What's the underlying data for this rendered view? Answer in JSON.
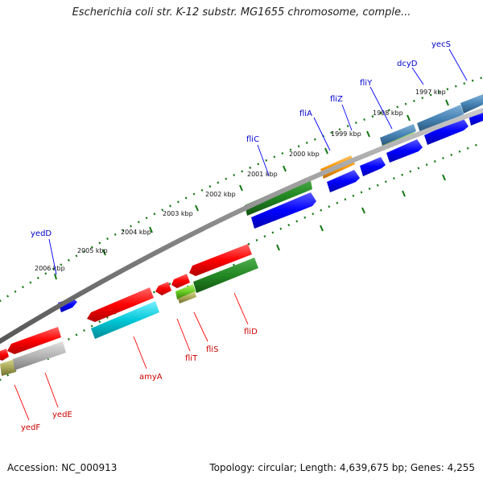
{
  "title": "Escherichia coli str. K-12 substr. MG1655 chromosome, comple...",
  "footer": {
    "accession": "Accession: NC_000913",
    "summary": "Topology: circular; Length: 4,639,675 bp; Genes: 4,255"
  },
  "kbp_labels": [
    "2006 kbp",
    "2005 kbp",
    "2004 kbp",
    "2003 kbp",
    "2002 kbp",
    "2001 kbp",
    "2000 kbp",
    "1999 kbp",
    "1998 kbp",
    "1997 kbp"
  ],
  "forward_genes": [
    {
      "name": "yedD",
      "color": "#0000cc"
    },
    {
      "name": "fliC",
      "color": "#0000cc"
    },
    {
      "name": "fliA",
      "color": "#0000cc"
    },
    {
      "name": "fliZ",
      "color": "#0000cc"
    },
    {
      "name": "fliY",
      "color": "#0000cc"
    },
    {
      "name": "dcyD",
      "color": "#0000cc"
    },
    {
      "name": "yecS",
      "color": "#0000cc"
    }
  ],
  "reverse_genes": [
    {
      "name": "yedF",
      "color": "#cc0000"
    },
    {
      "name": "yedE",
      "color": "#cc0000"
    },
    {
      "name": "amyA",
      "color": "#cc0000"
    },
    {
      "name": "fliT",
      "color": "#cc0000"
    },
    {
      "name": "fliS",
      "color": "#cc0000"
    },
    {
      "name": "fliD",
      "color": "#cc0000"
    }
  ],
  "colors": {
    "forward_cds": "#0000ff",
    "reverse_cds": "#ff0000",
    "backbone": "#888888",
    "tick": "#117711",
    "gene_green": "#228822",
    "gene_cyan": "#00c8d8",
    "gene_orange": "#ff9900",
    "gene_steelblue": "#4682b4",
    "gene_gray": "#aaaaaa"
  }
}
